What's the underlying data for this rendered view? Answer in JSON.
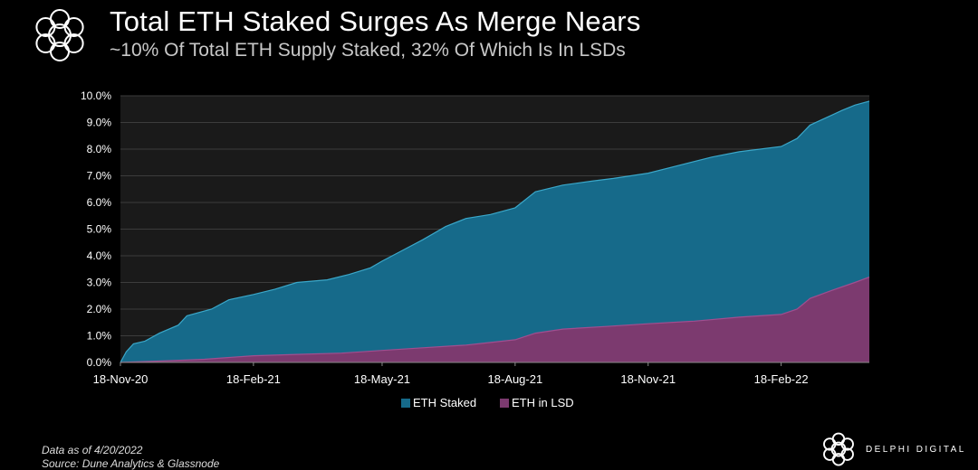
{
  "header": {
    "title": "Total ETH Staked Surges As Merge Nears",
    "subtitle": "~10% Of Total ETH Supply Staked, 32% Of Which Is In LSDs"
  },
  "footer": {
    "data_note": "Data as of 4/20/2022",
    "source_note": "Source: Dune Analytics & Glassnode",
    "brand": "DELPHI DIGITAL"
  },
  "colors": {
    "background": "#000000",
    "plot_background": "#1a1a1a",
    "eth_staked": "#166a8a",
    "eth_in_lsd": "#7c3a6f",
    "gridline": "#3c3c3c"
  },
  "chart_data": {
    "type": "area",
    "title": "Total ETH Staked Surges As Merge Nears",
    "subtitle": "~10% Of Total ETH Supply Staked, 32% Of Which Is In LSDs",
    "xlabel": "",
    "ylabel": "",
    "x_range": [
      "2020-11-18",
      "2022-04-20"
    ],
    "ylim": [
      0,
      10
    ],
    "y_ticks": [
      0,
      1,
      2,
      3,
      4,
      5,
      6,
      7,
      8,
      9,
      10
    ],
    "y_tick_labels": [
      "0.0%",
      "1.0%",
      "2.0%",
      "3.0%",
      "4.0%",
      "5.0%",
      "6.0%",
      "7.0%",
      "8.0%",
      "9.0%",
      "10.0%"
    ],
    "x_ticks": [
      "2020-11-18",
      "2021-02-18",
      "2021-05-18",
      "2021-08-18",
      "2021-11-18",
      "2022-02-18"
    ],
    "x_tick_labels": [
      "18-Nov-20",
      "18-Feb-21",
      "18-May-21",
      "18-Aug-21",
      "18-Nov-21",
      "18-Feb-22"
    ],
    "grid": true,
    "legend_position": "bottom",
    "series": [
      {
        "name": "ETH Staked",
        "color": "#166a8a",
        "points": [
          [
            "2020-11-18",
            0.0
          ],
          [
            "2020-11-22",
            0.4
          ],
          [
            "2020-11-27",
            0.7
          ],
          [
            "2020-12-05",
            0.8
          ],
          [
            "2020-12-15",
            1.1
          ],
          [
            "2020-12-28",
            1.4
          ],
          [
            "2021-01-03",
            1.75
          ],
          [
            "2021-01-20",
            2.0
          ],
          [
            "2021-02-01",
            2.35
          ],
          [
            "2021-02-18",
            2.55
          ],
          [
            "2021-03-05",
            2.75
          ],
          [
            "2021-03-20",
            3.0
          ],
          [
            "2021-04-10",
            3.1
          ],
          [
            "2021-04-25",
            3.3
          ],
          [
            "2021-05-10",
            3.55
          ],
          [
            "2021-05-18",
            3.8
          ],
          [
            "2021-06-01",
            4.2
          ],
          [
            "2021-06-15",
            4.6
          ],
          [
            "2021-07-01",
            5.1
          ],
          [
            "2021-07-15",
            5.4
          ],
          [
            "2021-08-01",
            5.55
          ],
          [
            "2021-08-18",
            5.8
          ],
          [
            "2021-09-01",
            6.4
          ],
          [
            "2021-09-20",
            6.65
          ],
          [
            "2021-10-10",
            6.8
          ],
          [
            "2021-10-25",
            6.9
          ],
          [
            "2021-11-18",
            7.1
          ],
          [
            "2021-12-10",
            7.4
          ],
          [
            "2022-01-01",
            7.7
          ],
          [
            "2022-01-20",
            7.9
          ],
          [
            "2022-02-18",
            8.1
          ],
          [
            "2022-03-01",
            8.4
          ],
          [
            "2022-03-10",
            8.9
          ],
          [
            "2022-03-20",
            9.15
          ],
          [
            "2022-04-01",
            9.45
          ],
          [
            "2022-04-10",
            9.65
          ],
          [
            "2022-04-20",
            9.8
          ]
        ]
      },
      {
        "name": "ETH in LSD",
        "color": "#7c3a6f",
        "points": [
          [
            "2020-11-18",
            0.0
          ],
          [
            "2020-12-15",
            0.05
          ],
          [
            "2021-01-15",
            0.12
          ],
          [
            "2021-02-18",
            0.25
          ],
          [
            "2021-03-20",
            0.3
          ],
          [
            "2021-04-20",
            0.35
          ],
          [
            "2021-05-18",
            0.45
          ],
          [
            "2021-06-15",
            0.55
          ],
          [
            "2021-07-15",
            0.65
          ],
          [
            "2021-08-01",
            0.75
          ],
          [
            "2021-08-18",
            0.85
          ],
          [
            "2021-09-01",
            1.1
          ],
          [
            "2021-09-20",
            1.25
          ],
          [
            "2021-10-20",
            1.35
          ],
          [
            "2021-11-18",
            1.45
          ],
          [
            "2021-12-20",
            1.55
          ],
          [
            "2022-01-20",
            1.7
          ],
          [
            "2022-02-18",
            1.8
          ],
          [
            "2022-03-01",
            2.0
          ],
          [
            "2022-03-10",
            2.4
          ],
          [
            "2022-03-25",
            2.7
          ],
          [
            "2022-04-10",
            3.0
          ],
          [
            "2022-04-20",
            3.2
          ]
        ]
      }
    ]
  }
}
